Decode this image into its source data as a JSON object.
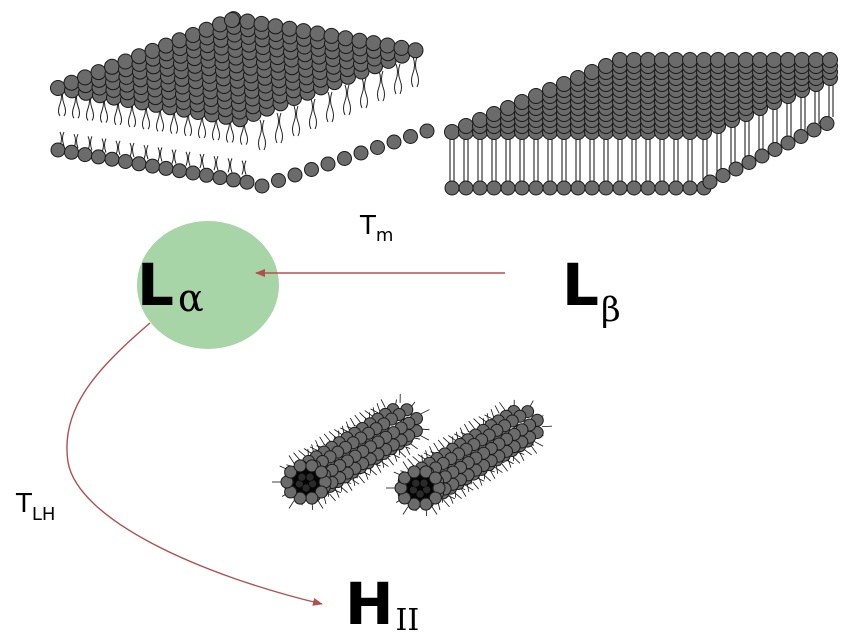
{
  "diagram": {
    "phases": {
      "l_alpha": {
        "symbol": "L",
        "subscript": "α",
        "highlight_color": "#a8d5a8",
        "symbol_color": "#0c3b0c"
      },
      "l_beta": {
        "symbol": "L",
        "subscript": "β"
      },
      "h_ii": {
        "symbol": "H",
        "subscript": "II"
      }
    },
    "transitions": {
      "tm": {
        "base": "T",
        "subscript": "m"
      },
      "tlh": {
        "base": "T",
        "subscript": "LH"
      }
    },
    "arrow_color": "#b05050",
    "headgroup_color": "#6b6b6b",
    "tail_color": "#222222"
  }
}
